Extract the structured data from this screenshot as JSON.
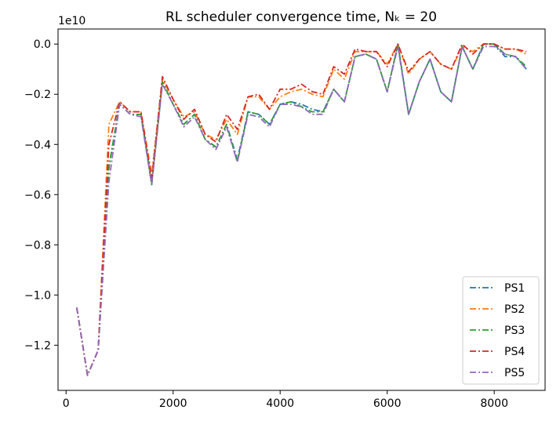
{
  "chart_data": {
    "type": "line",
    "title": "RL scheduler convergence time, Nₖ = 20",
    "xlabel": "",
    "ylabel": "",
    "y_offset_label": "1e10",
    "y_scale_exponent": 10,
    "xlim": [
      -150,
      8950
    ],
    "ylim": [
      -13.8,
      0.6
    ],
    "x_ticks": [
      0,
      2000,
      4000,
      6000,
      8000
    ],
    "x_tick_labels": [
      "0",
      "2000",
      "4000",
      "6000",
      "8000"
    ],
    "y_ticks": [
      0,
      -2,
      -4,
      -6,
      -8,
      -10,
      -12
    ],
    "y_tick_labels": [
      "0.0",
      "−0.2",
      "−0.4",
      "−0.6",
      "−0.8",
      "−1.0",
      "−1.2"
    ],
    "grid": false,
    "legend_position": "lower-right",
    "x": [
      200,
      400,
      600,
      800,
      1000,
      1200,
      1400,
      1600,
      1800,
      2000,
      2200,
      2400,
      2600,
      2800,
      3000,
      3200,
      3400,
      3600,
      3800,
      4000,
      4200,
      4400,
      4600,
      4800,
      5000,
      5200,
      5400,
      5600,
      5800,
      6000,
      6200,
      6400,
      6600,
      6800,
      7000,
      7200,
      7400,
      7600,
      7800,
      8000,
      8200,
      8400,
      8600
    ],
    "series": [
      {
        "name": "PS1",
        "color": "#1f77b4",
        "values": [
          -10.5,
          -13.2,
          -12.2,
          -4.9,
          -2.4,
          -2.8,
          -2.8,
          -5.6,
          -1.5,
          -2.4,
          -3.2,
          -2.8,
          -3.8,
          -4.1,
          -3.2,
          -4.6,
          -2.7,
          -2.8,
          -3.2,
          -2.4,
          -2.3,
          -2.4,
          -2.6,
          -2.7,
          -1.8,
          -2.3,
          -0.5,
          -0.4,
          -0.6,
          -1.9,
          0.0,
          -2.8,
          -1.5,
          -0.6,
          -1.9,
          -2.3,
          -0.1,
          -1.0,
          0.0,
          0.0,
          -0.5,
          -0.5,
          -1.0
        ]
      },
      {
        "name": "PS2",
        "color": "#ff7f0e",
        "values": [
          -10.5,
          -13.2,
          -12.2,
          -3.2,
          -2.3,
          -2.7,
          -2.7,
          -5.2,
          -1.4,
          -2.2,
          -2.9,
          -2.7,
          -3.6,
          -3.8,
          -3.0,
          -3.6,
          -2.1,
          -2.1,
          -2.6,
          -2.1,
          -1.9,
          -1.8,
          -2.0,
          -2.1,
          -1.0,
          -1.4,
          -0.3,
          -0.3,
          -0.3,
          -0.8,
          0.0,
          -1.2,
          -0.6,
          -0.3,
          -0.8,
          -1.0,
          -0.1,
          -0.3,
          0.0,
          0.0,
          -0.2,
          -0.2,
          -0.4
        ]
      },
      {
        "name": "PS3",
        "color": "#2ca02c",
        "values": [
          -10.5,
          -13.2,
          -12.2,
          -4.9,
          -2.4,
          -2.8,
          -2.8,
          -5.6,
          -1.5,
          -2.4,
          -3.2,
          -2.8,
          -3.8,
          -4.1,
          -3.2,
          -4.7,
          -2.7,
          -2.8,
          -3.2,
          -2.4,
          -2.3,
          -2.5,
          -2.7,
          -2.7,
          -1.8,
          -2.3,
          -0.5,
          -0.4,
          -0.6,
          -1.9,
          0.0,
          -2.8,
          -1.5,
          -0.6,
          -1.9,
          -2.3,
          -0.1,
          -1.0,
          0.0,
          0.0,
          -0.4,
          -0.5,
          -0.9
        ]
      },
      {
        "name": "PS4",
        "color": "#d62728",
        "values": [
          -10.5,
          -13.2,
          -12.2,
          -4.0,
          -2.3,
          -2.7,
          -2.7,
          -5.4,
          -1.3,
          -2.2,
          -3.0,
          -2.6,
          -3.6,
          -3.9,
          -2.8,
          -3.4,
          -2.1,
          -2.0,
          -2.6,
          -1.8,
          -1.8,
          -1.6,
          -1.9,
          -2.0,
          -0.9,
          -1.2,
          -0.2,
          -0.3,
          -0.3,
          -0.9,
          0.0,
          -1.1,
          -0.6,
          -0.3,
          -0.8,
          -1.0,
          0.0,
          -0.4,
          0.0,
          0.0,
          -0.2,
          -0.2,
          -0.3
        ]
      },
      {
        "name": "PS5",
        "color": "#9467bd",
        "values": [
          -10.5,
          -13.2,
          -12.2,
          -5.5,
          -2.4,
          -2.8,
          -2.9,
          -5.6,
          -1.6,
          -2.4,
          -3.3,
          -2.9,
          -3.8,
          -4.2,
          -3.3,
          -4.7,
          -2.8,
          -2.9,
          -3.3,
          -2.4,
          -2.4,
          -2.5,
          -2.8,
          -2.8,
          -1.8,
          -2.3,
          -0.5,
          -0.4,
          -0.6,
          -1.9,
          -0.1,
          -2.8,
          -1.5,
          -0.6,
          -1.9,
          -2.3,
          -0.1,
          -1.0,
          -0.1,
          -0.1,
          -0.4,
          -0.5,
          -1.0
        ]
      }
    ]
  }
}
